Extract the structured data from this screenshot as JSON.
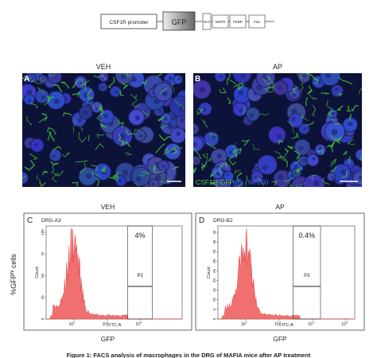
{
  "construct": {
    "segments": [
      "CSF1R promoter",
      "GFP",
      "IRES",
      "NGFR",
      "FKBP",
      "Fas"
    ]
  },
  "micrographs": [
    {
      "condition": "VEH",
      "label": "A"
    },
    {
      "condition": "AP",
      "label": "B",
      "legend": [
        "CSF1R-GFP",
        "NF200"
      ]
    }
  ],
  "facs": {
    "y_label": {
      "main": "%GFP",
      "sup": "hi",
      "rest": " cells"
    },
    "panels": [
      {
        "condition": "VEH",
        "label": "C",
        "sample": "DRG-A3",
        "gate": "P3",
        "percent": "4%",
        "y_axis": "Count",
        "x_axis": "FITC-A",
        "x_title": "GFP",
        "y_ticks": [
          "0",
          "25",
          "50",
          "75",
          "100"
        ],
        "x_ticks": [
          {
            "base": "10",
            "exponent": "2"
          },
          {
            "base": "10",
            "exponent": "3"
          },
          {
            "base": "10",
            "exponent": "4"
          }
        ]
      },
      {
        "condition": "AP",
        "label": "D",
        "sample": "DRG-B2",
        "gate": "P3",
        "percent": "0.4%",
        "y_axis": "Count",
        "x_axis": "FITC-A",
        "x_title": "GFP",
        "y_ticks": [
          "0",
          "5",
          "10",
          "15",
          "20",
          "25",
          "30",
          "35",
          "40",
          "45"
        ],
        "x_ticks": [
          {
            "base": "10",
            "exponent": "2"
          },
          {
            "base": "10",
            "exponent": "3"
          },
          {
            "base": "10",
            "exponent": "4"
          },
          {
            "base": "10",
            "exponent": "5"
          }
        ]
      }
    ]
  },
  "caption": "Figure 1: FACS analysis of macrophages in the DRG of MAFIA mice after AP treatment"
}
